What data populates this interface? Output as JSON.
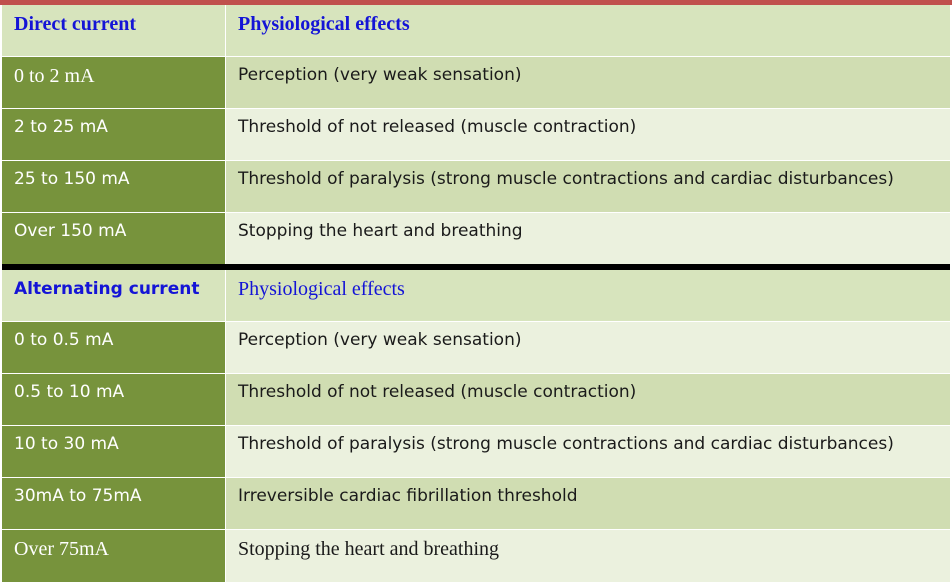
{
  "dc_section": {
    "header_left": "Direct current",
    "header_right": "Physiological effects",
    "rows": [
      {
        "range": "0 to 2 mA",
        "effect": "Perception (very weak sensation)"
      },
      {
        "range": "2 to 25 mA",
        "effect": "Threshold of not released (muscle contraction)"
      },
      {
        "range": "25 to 150 mA",
        "effect": "Threshold of paralysis (strong muscle contractions and cardiac disturbances)"
      },
      {
        "range": "Over 150 mA",
        "effect": "Stopping the heart and breathing"
      }
    ]
  },
  "ac_section": {
    "header_left": "Alternating current",
    "header_right": "Physiological effects",
    "rows": [
      {
        "range": "0 to  0.5 mA",
        "effect": "Perception (very weak sensation)"
      },
      {
        "range": "0.5 to 10 mA",
        "effect": "Threshold of not released (muscle contraction)"
      },
      {
        "range": "10 to 30 mA",
        "effect": "Threshold of paralysis (strong muscle contractions and cardiac disturbances)"
      },
      {
        "range": "30mA to 75mA",
        "effect": "Irreversible cardiac fibrillation threshold"
      },
      {
        "range": "Over  75mA",
        "effect": "Stopping the heart and breathing"
      }
    ]
  },
  "colors": {
    "top_border": "#c0504d",
    "left_column": "#77933c",
    "header_fill": "#d7e4bd",
    "row_mid": "#d0ddb2",
    "row_light": "#ebf1de",
    "header_text": "#1414d6",
    "separator": "#000000"
  }
}
